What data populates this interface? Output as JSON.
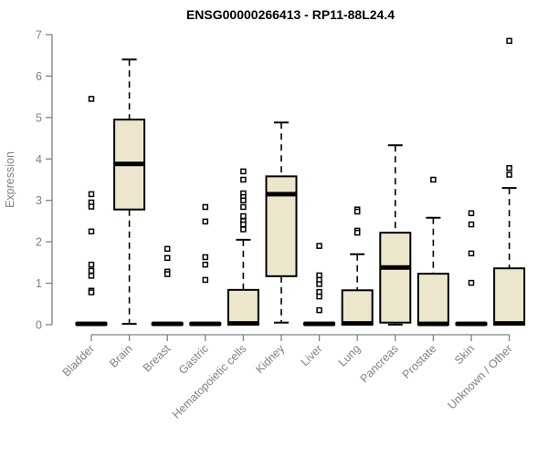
{
  "chart_data": {
    "type": "boxplot",
    "title": "ENSG00000266413 - RP11-88L24.4",
    "xlabel": "",
    "ylabel": "Expression",
    "ylim": [
      0,
      7
    ],
    "yticks": [
      0,
      1,
      2,
      3,
      4,
      5,
      6,
      7
    ],
    "grid": false,
    "legend": "none",
    "categories": [
      "Bladder",
      "Brain",
      "Breast",
      "Gastric",
      "Hematopoietic cells",
      "Kidney",
      "Liver",
      "Lung",
      "Pancreas",
      "Prostate",
      "Skin",
      "Unknown / Other"
    ],
    "boxes": [
      {
        "name": "Bladder",
        "whisker_low": 0,
        "q1": 0,
        "median": 0.02,
        "q3": 0.04,
        "whisker_high": 0.05,
        "outliers": [
          5.45,
          3.15,
          2.95,
          2.85,
          2.25,
          1.45,
          1.3,
          1.18,
          0.82,
          0.78
        ]
      },
      {
        "name": "Brain",
        "whisker_low": 0.02,
        "q1": 2.78,
        "median": 3.88,
        "q3": 4.95,
        "whisker_high": 6.4,
        "outliers": []
      },
      {
        "name": "Breast",
        "whisker_low": 0,
        "q1": 0,
        "median": 0.02,
        "q3": 0.04,
        "whisker_high": 0.05,
        "outliers": [
          1.83,
          1.61,
          1.28,
          1.22
        ]
      },
      {
        "name": "Gastric",
        "whisker_low": 0,
        "q1": 0,
        "median": 0.02,
        "q3": 0.04,
        "whisker_high": 0.05,
        "outliers": [
          2.84,
          2.49,
          1.63,
          1.45,
          1.08
        ]
      },
      {
        "name": "Hematopoietic cells",
        "whisker_low": 0,
        "q1": 0,
        "median": 0.03,
        "q3": 0.84,
        "whisker_high": 2.05,
        "outliers": [
          3.7,
          3.5,
          3.17,
          3.08,
          3.0,
          2.84,
          2.62,
          2.5,
          2.42,
          2.3
        ]
      },
      {
        "name": "Kidney",
        "whisker_low": 0.05,
        "q1": 1.17,
        "median": 3.15,
        "q3": 3.58,
        "whisker_high": 4.88,
        "outliers": []
      },
      {
        "name": "Liver",
        "whisker_low": 0,
        "q1": 0,
        "median": 0.02,
        "q3": 0.04,
        "whisker_high": 0.05,
        "outliers": [
          1.9,
          1.19,
          1.08,
          0.98,
          0.79,
          0.68,
          0.35
        ]
      },
      {
        "name": "Lung",
        "whisker_low": 0,
        "q1": 0,
        "median": 0.03,
        "q3": 0.83,
        "whisker_high": 1.7,
        "outliers": [
          2.78,
          2.73,
          2.27,
          2.22
        ]
      },
      {
        "name": "Pancreas",
        "whisker_low": 0,
        "q1": 0.05,
        "median": 1.38,
        "q3": 2.22,
        "whisker_high": 4.33,
        "outliers": []
      },
      {
        "name": "Prostate",
        "whisker_low": 0,
        "q1": 0,
        "median": 0.02,
        "q3": 1.23,
        "whisker_high": 2.58,
        "outliers": [
          3.5
        ]
      },
      {
        "name": "Skin",
        "whisker_low": 0,
        "q1": 0,
        "median": 0.02,
        "q3": 0.04,
        "whisker_high": 0.05,
        "outliers": [
          2.69,
          2.42,
          1.72,
          1.01
        ]
      },
      {
        "name": "Unknown / Other",
        "whisker_low": 0,
        "q1": 0,
        "median": 0.03,
        "q3": 1.36,
        "whisker_high": 3.3,
        "outliers": [
          6.85,
          3.78,
          3.62
        ]
      }
    ],
    "colors": {
      "box_fill": "#ece6cd",
      "box_stroke": "#000000",
      "median": "#000000",
      "whisker": "#000000",
      "axis": "#808080",
      "tick_label": "#808080",
      "title": "#000000",
      "background": "#ffffff"
    }
  }
}
